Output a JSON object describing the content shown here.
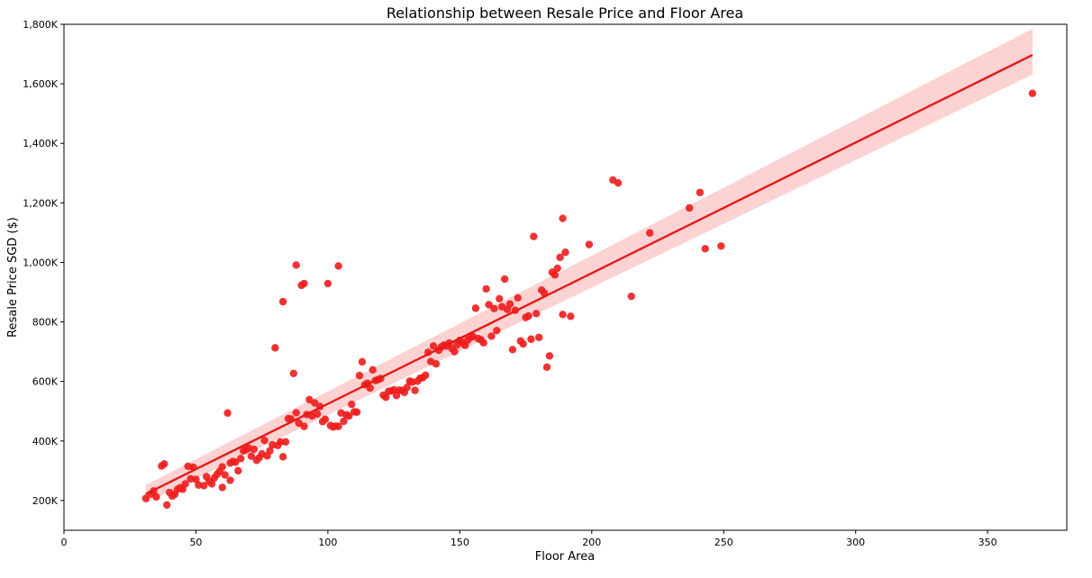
{
  "chart_data": {
    "type": "scatter",
    "title": "Relationship between Resale Price and Floor Area",
    "xlabel": "Floor Area",
    "ylabel": "Resale Price SGD ($)",
    "xlim": [
      0,
      380
    ],
    "ylim": [
      100000,
      1800000
    ],
    "x_ticks": [
      0,
      50,
      100,
      150,
      200,
      250,
      300,
      350
    ],
    "x_tick_labels": [
      "0",
      "50",
      "100",
      "150",
      "200",
      "250",
      "300",
      "350"
    ],
    "y_ticks": [
      200000,
      400000,
      600000,
      800000,
      1000000,
      1200000,
      1400000,
      1600000,
      1800000
    ],
    "y_tick_labels": [
      "200K",
      "400K",
      "600K",
      "800K",
      "1,000K",
      "1,200K",
      "1,400K",
      "1,600K",
      "1,800K"
    ],
    "grid": false,
    "point_color": "#ee1c1c",
    "regression": {
      "color": "#e41a1a",
      "band_color": "#fdd2d2",
      "x_range": [
        31,
        367
      ],
      "fit_y": [
        222000,
        1697000
      ],
      "ci_upper": [
        252000,
        1785000
      ],
      "ci_lower": [
        192000,
        1631000
      ]
    },
    "points": [
      [
        31,
        207000
      ],
      [
        33,
        222000
      ],
      [
        34,
        232000
      ],
      [
        35,
        212000
      ],
      [
        37,
        316000
      ],
      [
        38,
        323000
      ],
      [
        39,
        185000
      ],
      [
        40,
        227000
      ],
      [
        41,
        215000
      ],
      [
        42,
        221000
      ],
      [
        43,
        237000
      ],
      [
        44,
        243000
      ],
      [
        45,
        238000
      ],
      [
        46,
        256000
      ],
      [
        47,
        315000
      ],
      [
        48,
        273000
      ],
      [
        49,
        312000
      ],
      [
        50,
        271000
      ],
      [
        51,
        252000
      ],
      [
        53,
        250000
      ],
      [
        54,
        280000
      ],
      [
        55,
        265000
      ],
      [
        56,
        256000
      ],
      [
        57,
        276000
      ],
      [
        58,
        288000
      ],
      [
        59,
        298000
      ],
      [
        60,
        313000
      ],
      [
        60,
        244000
      ],
      [
        61,
        286000
      ],
      [
        62,
        494000
      ],
      [
        63,
        268000
      ],
      [
        63,
        326000
      ],
      [
        64,
        331000
      ],
      [
        65,
        329000
      ],
      [
        66,
        300000
      ],
      [
        67,
        341000
      ],
      [
        68,
        367000
      ],
      [
        69,
        371000
      ],
      [
        70,
        376000
      ],
      [
        71,
        349000
      ],
      [
        72,
        372000
      ],
      [
        73,
        335000
      ],
      [
        74,
        344000
      ],
      [
        75,
        357000
      ],
      [
        76,
        402000
      ],
      [
        77,
        350000
      ],
      [
        78,
        367000
      ],
      [
        79,
        387000
      ],
      [
        80,
        713000
      ],
      [
        81,
        385000
      ],
      [
        82,
        397000
      ],
      [
        83,
        347000
      ],
      [
        83,
        868000
      ],
      [
        84,
        397000
      ],
      [
        85,
        475000
      ],
      [
        86,
        474000
      ],
      [
        87,
        627000
      ],
      [
        88,
        495000
      ],
      [
        88,
        991000
      ],
      [
        89,
        460000
      ],
      [
        90,
        923000
      ],
      [
        91,
        929000
      ],
      [
        91,
        449000
      ],
      [
        92,
        489000
      ],
      [
        93,
        539000
      ],
      [
        94,
        484000
      ],
      [
        95,
        528000
      ],
      [
        96,
        491000
      ],
      [
        97,
        516000
      ],
      [
        98,
        465000
      ],
      [
        99,
        473000
      ],
      [
        100,
        929000
      ],
      [
        101,
        452000
      ],
      [
        102,
        447000
      ],
      [
        103,
        450000
      ],
      [
        104,
        988000
      ],
      [
        104,
        449000
      ],
      [
        105,
        494000
      ],
      [
        106,
        466000
      ],
      [
        107,
        488000
      ],
      [
        108,
        484000
      ],
      [
        109,
        523000
      ],
      [
        110,
        498000
      ],
      [
        111,
        497000
      ],
      [
        112,
        620000
      ],
      [
        113,
        666000
      ],
      [
        114,
        589000
      ],
      [
        115,
        594000
      ],
      [
        116,
        578000
      ],
      [
        117,
        639000
      ],
      [
        118,
        603000
      ],
      [
        119,
        606000
      ],
      [
        120,
        610000
      ],
      [
        121,
        554000
      ],
      [
        122,
        547000
      ],
      [
        123,
        567000
      ],
      [
        124,
        568000
      ],
      [
        125,
        572000
      ],
      [
        126,
        553000
      ],
      [
        127,
        571000
      ],
      [
        128,
        570000
      ],
      [
        129,
        563000
      ],
      [
        130,
        580000
      ],
      [
        131,
        601000
      ],
      [
        132,
        598000
      ],
      [
        133,
        570000
      ],
      [
        134,
        601000
      ],
      [
        135,
        611000
      ],
      [
        136,
        613000
      ],
      [
        137,
        621000
      ],
      [
        138,
        698000
      ],
      [
        139,
        667000
      ],
      [
        140,
        719000
      ],
      [
        141,
        659000
      ],
      [
        142,
        705000
      ],
      [
        143,
        716000
      ],
      [
        144,
        722000
      ],
      [
        145,
        719000
      ],
      [
        146,
        729000
      ],
      [
        147,
        711000
      ],
      [
        148,
        700000
      ],
      [
        149,
        723000
      ],
      [
        150,
        738000
      ],
      [
        151,
        730000
      ],
      [
        152,
        721000
      ],
      [
        153,
        739000
      ],
      [
        154,
        748000
      ],
      [
        155,
        751000
      ],
      [
        156,
        846000
      ],
      [
        157,
        744000
      ],
      [
        158,
        740000
      ],
      [
        159,
        730000
      ],
      [
        160,
        911000
      ],
      [
        161,
        858000
      ],
      [
        162,
        752000
      ],
      [
        163,
        845000
      ],
      [
        164,
        771000
      ],
      [
        165,
        878000
      ],
      [
        166,
        851000
      ],
      [
        167,
        944000
      ],
      [
        168,
        842000
      ],
      [
        169,
        860000
      ],
      [
        170,
        707000
      ],
      [
        171,
        839000
      ],
      [
        172,
        881000
      ],
      [
        173,
        736000
      ],
      [
        174,
        726000
      ],
      [
        175,
        815000
      ],
      [
        176,
        820000
      ],
      [
        177,
        742000
      ],
      [
        178,
        1087000
      ],
      [
        179,
        828000
      ],
      [
        180,
        748000
      ],
      [
        181,
        907000
      ],
      [
        182,
        897000
      ],
      [
        183,
        648000
      ],
      [
        184,
        686000
      ],
      [
        185,
        967000
      ],
      [
        186,
        958000
      ],
      [
        187,
        980000
      ],
      [
        188,
        1017000
      ],
      [
        189,
        825000
      ],
      [
        189,
        1148000
      ],
      [
        190,
        1034000
      ],
      [
        192,
        819000
      ],
      [
        199,
        1060000
      ],
      [
        208,
        1277000
      ],
      [
        210,
        1267000
      ],
      [
        215,
        886000
      ],
      [
        222,
        1099000
      ],
      [
        237,
        1183000
      ],
      [
        241,
        1235000
      ],
      [
        243,
        1046000
      ],
      [
        249,
        1055000
      ],
      [
        367,
        1568000
      ]
    ]
  }
}
